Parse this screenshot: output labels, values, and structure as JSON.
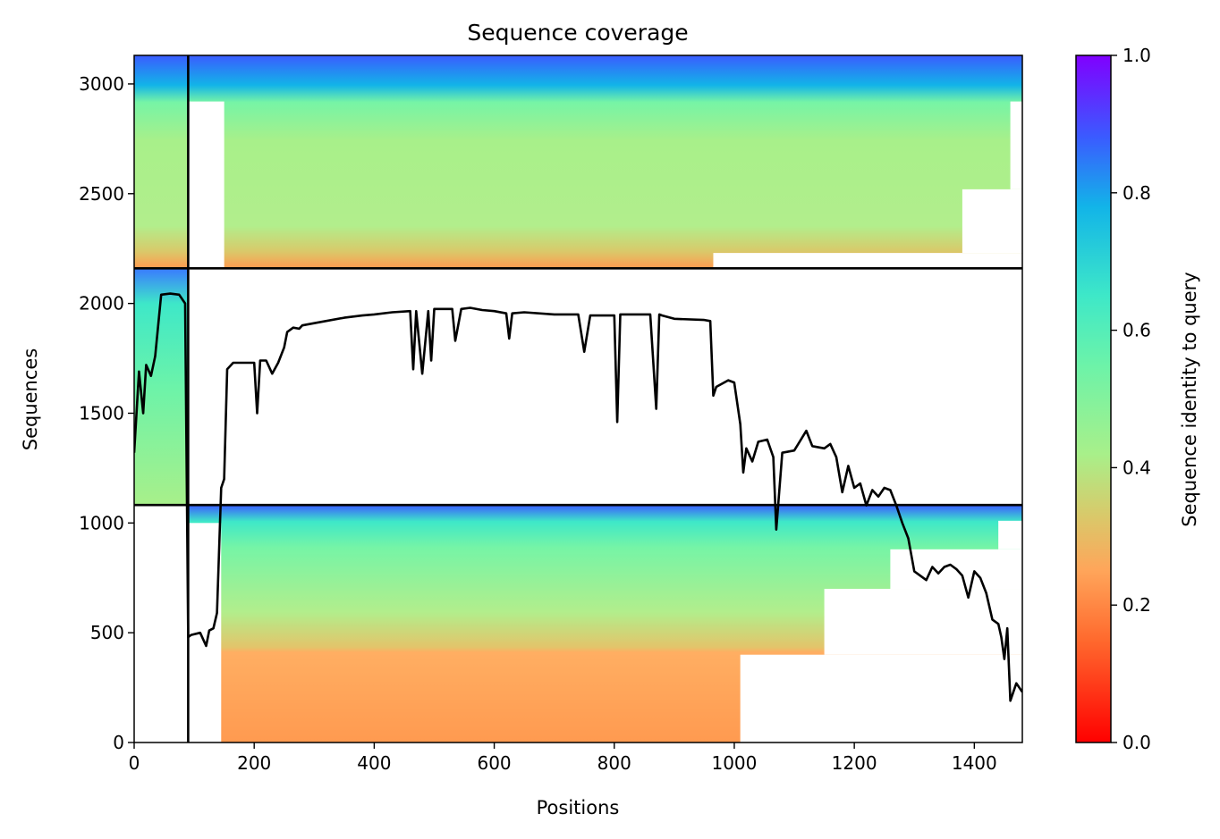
{
  "chart_data": {
    "type": "heatmap",
    "title": "Sequence coverage",
    "xlabel": "Positions",
    "ylabel": "Sequences",
    "colorbar_label": "Sequence identity to query",
    "xlim": [
      0,
      1480
    ],
    "ylim": [
      0,
      3130
    ],
    "xticks": [
      0,
      200,
      400,
      600,
      800,
      1000,
      1200,
      1400
    ],
    "yticks": [
      0,
      500,
      1000,
      1500,
      2000,
      2500,
      3000
    ],
    "colorbar_ticks": [
      "0.0",
      "0.2",
      "0.4",
      "0.6",
      "0.8",
      "1.0"
    ],
    "colorbar_range": [
      0,
      1
    ],
    "colormap": [
      "#ff0000",
      "#ff7a35",
      "#d9c96a",
      "#a8f08a",
      "#4ef0b8",
      "#12b4e8",
      "#3a5cff",
      "#8000ff"
    ],
    "grid": false,
    "block_boundaries": {
      "x_split": 90,
      "y_splits": [
        1082,
        2160
      ]
    },
    "blocks": [
      {
        "name": "block-1",
        "x_range": [
          0,
          90
        ],
        "y_range": [
          1082,
          2160
        ],
        "identity_bottom": 0.4,
        "identity_top": 0.85
      },
      {
        "name": "block-2",
        "x_range": [
          90,
          1480
        ],
        "y_range": [
          0,
          1082
        ],
        "identity_bottom": 0.25,
        "identity_top": 0.9
      },
      {
        "name": "block-3",
        "x_range": [
          0,
          1480
        ],
        "y_range": [
          2160,
          3130
        ],
        "identity_bottom": 0.25,
        "identity_top": 0.9
      }
    ],
    "coverage_line": {
      "x": [
        0,
        8,
        15,
        20,
        28,
        35,
        45,
        60,
        75,
        85,
        90,
        95,
        110,
        120,
        125,
        132,
        138,
        145,
        150,
        155,
        165,
        200,
        205,
        210,
        220,
        230,
        240,
        250,
        255,
        265,
        275,
        280,
        300,
        350,
        380,
        400,
        430,
        460,
        465,
        470,
        480,
        490,
        495,
        500,
        530,
        535,
        545,
        560,
        580,
        600,
        620,
        625,
        630,
        650,
        700,
        740,
        750,
        760,
        800,
        805,
        810,
        820,
        860,
        870,
        875,
        880,
        900,
        950,
        960,
        965,
        970,
        990,
        1000,
        1010,
        1015,
        1020,
        1030,
        1040,
        1055,
        1065,
        1070,
        1080,
        1100,
        1120,
        1130,
        1150,
        1160,
        1170,
        1180,
        1190,
        1200,
        1210,
        1220,
        1230,
        1240,
        1250,
        1260,
        1270,
        1280,
        1290,
        1300,
        1310,
        1320,
        1330,
        1340,
        1350,
        1360,
        1370,
        1380,
        1390,
        1400,
        1410,
        1420,
        1430,
        1440,
        1445,
        1450,
        1455,
        1460,
        1470,
        1480
      ],
      "y": [
        1320,
        1690,
        1500,
        1720,
        1670,
        1760,
        2040,
        2045,
        2040,
        2000,
        480,
        490,
        500,
        440,
        510,
        520,
        590,
        1160,
        1200,
        1700,
        1730,
        1730,
        1500,
        1740,
        1740,
        1680,
        1730,
        1800,
        1870,
        1890,
        1885,
        1900,
        1910,
        1935,
        1945,
        1950,
        1960,
        1965,
        1700,
        1965,
        1680,
        1965,
        1740,
        1975,
        1975,
        1830,
        1975,
        1980,
        1970,
        1965,
        1955,
        1840,
        1955,
        1960,
        1950,
        1950,
        1780,
        1945,
        1945,
        1460,
        1950,
        1950,
        1950,
        1520,
        1950,
        1945,
        1930,
        1925,
        1920,
        1580,
        1620,
        1650,
        1640,
        1450,
        1230,
        1340,
        1280,
        1370,
        1380,
        1300,
        970,
        1320,
        1330,
        1420,
        1350,
        1340,
        1360,
        1300,
        1140,
        1260,
        1160,
        1180,
        1080,
        1150,
        1120,
        1160,
        1150,
        1080,
        1000,
        930,
        780,
        760,
        740,
        800,
        770,
        800,
        810,
        790,
        760,
        660,
        780,
        750,
        680,
        560,
        540,
        480,
        380,
        520,
        190,
        270,
        230
      ]
    }
  }
}
